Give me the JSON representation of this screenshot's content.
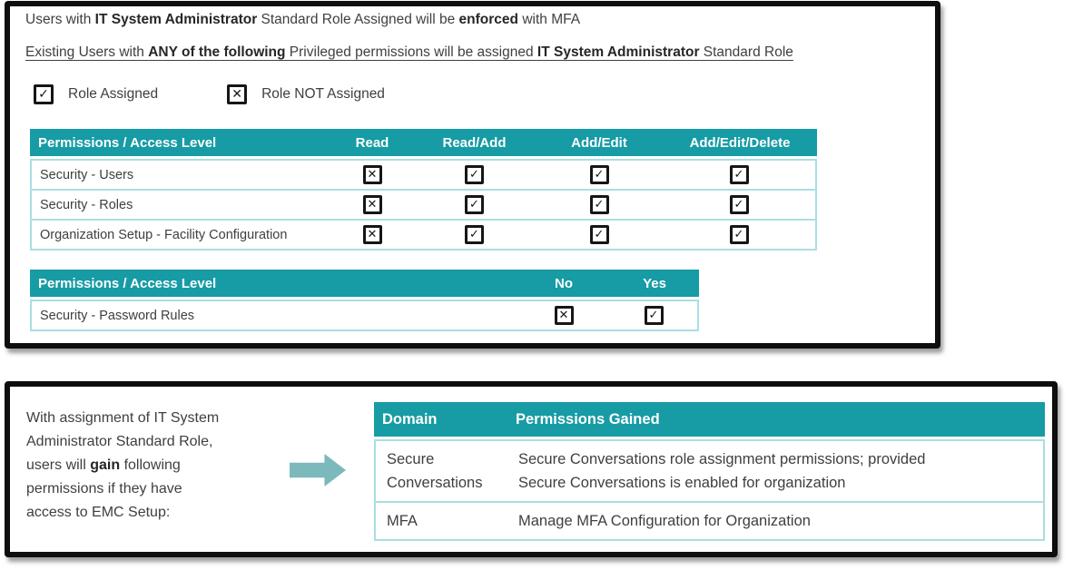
{
  "colors": {
    "header_teal": "#179BA5",
    "row_border_teal": "#AADEE3",
    "arrow_teal": "#7CB9BC",
    "text_dark": "#3F3F3F",
    "text_bold": "#262626",
    "panel_border": "#0E0E0E"
  },
  "panel_mfa": {
    "line1_segments": [
      {
        "text": "Users with "
      },
      {
        "text": "IT System Administrator",
        "bold": true
      },
      {
        "text": " Standard Role Assigned will be "
      },
      {
        "text": "enforced",
        "bold": true
      },
      {
        "text": " with MFA"
      }
    ],
    "line2_segments": [
      {
        "text": "Existing Users with "
      },
      {
        "text": "ANY of the following",
        "bold": true
      },
      {
        "text": " Privileged permissions will be assigned "
      },
      {
        "text": "IT System Administrator",
        "bold": true
      },
      {
        "text": " Standard Role"
      }
    ],
    "legend": [
      {
        "state": "checked",
        "label": "Role Assigned"
      },
      {
        "state": "crossed",
        "label": "Role NOT Assigned"
      }
    ],
    "permissions_table": {
      "headers": [
        "Permissions / Access Level",
        "Read",
        "Read/Add",
        "Add/Edit",
        "Add/Edit/Delete"
      ],
      "rows": [
        {
          "label": "Security - Users",
          "cells": [
            "crossed",
            "checked",
            "checked",
            "checked"
          ]
        },
        {
          "label": "Security - Roles",
          "cells": [
            "crossed",
            "checked",
            "checked",
            "checked"
          ]
        },
        {
          "label": "Organization Setup - Facility Configuration",
          "cells": [
            "crossed",
            "checked",
            "checked",
            "checked"
          ]
        }
      ]
    },
    "password_table": {
      "headers": [
        "Permissions / Access Level",
        "No",
        "Yes"
      ],
      "rows": [
        {
          "label": "Security - Password Rules",
          "cells": [
            "crossed",
            "checked"
          ]
        }
      ]
    }
  },
  "panel_gain": {
    "description_lines": [
      [
        {
          "text": "With assignment of IT System"
        }
      ],
      [
        {
          "text": "Administrator Standard Role,"
        }
      ],
      [
        {
          "text": "users will "
        },
        {
          "text": "gain",
          "bold": true
        },
        {
          "text": " following"
        }
      ],
      [
        {
          "text": "permissions if they have"
        }
      ],
      [
        {
          "text": "access to EMC Setup:"
        }
      ]
    ],
    "arrow_icon": "right-block-arrow",
    "gained_table": {
      "headers": [
        "Domain",
        "Permissions Gained"
      ],
      "rows": [
        {
          "domain": "Secure Conversations",
          "permission_lines": [
            "Secure Conversations role assignment permissions; provided",
            "Secure Conversations is enabled for organization"
          ]
        },
        {
          "domain": "MFA",
          "permission_lines": [
            "Manage MFA Configuration for Organization"
          ]
        }
      ]
    }
  }
}
